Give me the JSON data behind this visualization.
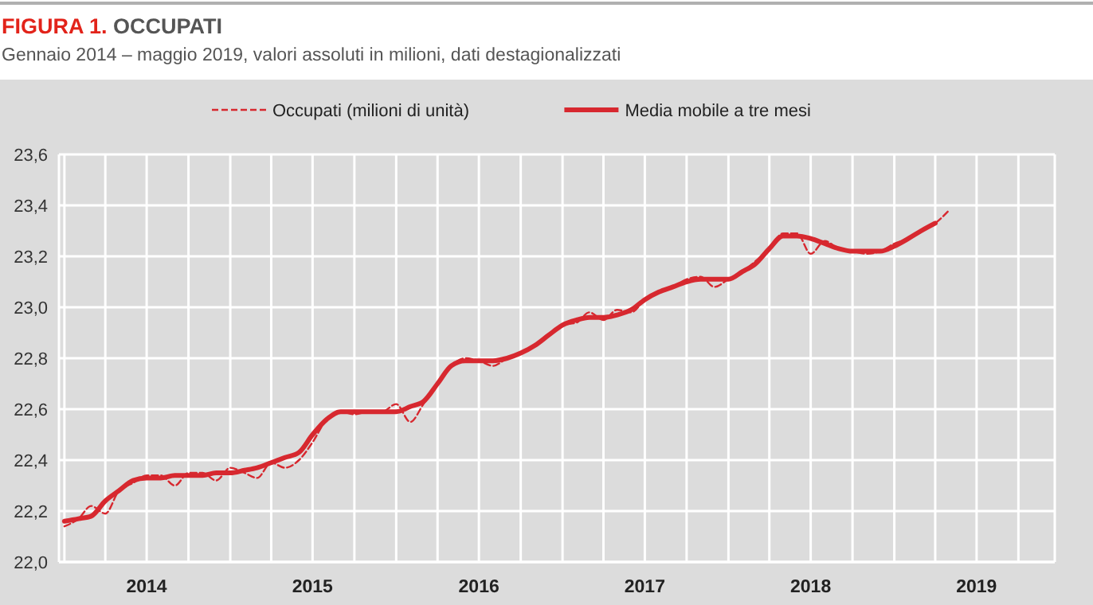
{
  "chart_data": {
    "type": "line",
    "title": "FIGURA 1. OCCUPATI",
    "subtitle": "Gennaio 2014 – maggio 2019, valori assoluti in milioni, dati destagionalizzati",
    "x": [
      "2014-01",
      "2014-02",
      "2014-03",
      "2014-04",
      "2014-05",
      "2014-06",
      "2014-07",
      "2014-08",
      "2014-09",
      "2014-10",
      "2014-11",
      "2014-12",
      "2015-01",
      "2015-02",
      "2015-03",
      "2015-04",
      "2015-05",
      "2015-06",
      "2015-07",
      "2015-08",
      "2015-09",
      "2015-10",
      "2015-11",
      "2015-12",
      "2016-01",
      "2016-02",
      "2016-03",
      "2016-04",
      "2016-05",
      "2016-06",
      "2016-07",
      "2016-08",
      "2016-09",
      "2016-10",
      "2016-11",
      "2016-12",
      "2017-01",
      "2017-02",
      "2017-03",
      "2017-04",
      "2017-05",
      "2017-06",
      "2017-07",
      "2017-08",
      "2017-09",
      "2017-10",
      "2017-11",
      "2017-12",
      "2018-01",
      "2018-02",
      "2018-03",
      "2018-04",
      "2018-05",
      "2018-06",
      "2018-07",
      "2018-08",
      "2018-09",
      "2018-10",
      "2018-11",
      "2018-12",
      "2019-01",
      "2019-02",
      "2019-03",
      "2019-04",
      "2019-05"
    ],
    "series": [
      {
        "name": "Occupati (milioni di unità)",
        "color": "#d7282f",
        "line_style": "dashed",
        "values": [
          22.14,
          22.17,
          22.22,
          22.19,
          22.28,
          22.31,
          22.34,
          22.34,
          22.3,
          22.35,
          22.35,
          22.32,
          22.37,
          22.35,
          22.33,
          22.39,
          22.37,
          22.4,
          22.47,
          22.56,
          22.59,
          22.58,
          22.59,
          22.59,
          22.62,
          22.55,
          22.62,
          22.7,
          22.77,
          22.8,
          22.79,
          22.77,
          22.8,
          22.82,
          22.85,
          22.89,
          22.93,
          22.94,
          22.98,
          22.95,
          22.99,
          22.98,
          23.03,
          23.06,
          23.08,
          23.11,
          23.12,
          23.08,
          23.11,
          23.14,
          23.18,
          23.23,
          23.29,
          23.29,
          23.21,
          23.26,
          23.23,
          23.22,
          23.21,
          23.22,
          23.25,
          23.27,
          23.3,
          23.33,
          23.38
        ]
      },
      {
        "name": "Media mobile a tre mesi",
        "color": "#d7282f",
        "line_style": "solid",
        "values": [
          22.16,
          22.17,
          22.18,
          22.24,
          22.28,
          22.32,
          22.33,
          22.33,
          22.34,
          22.34,
          22.34,
          22.35,
          22.35,
          22.36,
          22.37,
          22.39,
          22.41,
          22.43,
          22.5,
          22.56,
          22.59,
          22.59,
          22.59,
          22.59,
          22.59,
          22.61,
          22.63,
          22.7,
          22.77,
          22.79,
          22.79,
          22.79,
          22.8,
          22.82,
          22.85,
          22.89,
          22.93,
          22.95,
          22.96,
          22.96,
          22.97,
          22.99,
          23.03,
          23.06,
          23.08,
          23.1,
          23.11,
          23.11,
          23.11,
          23.14,
          23.17,
          23.23,
          23.28,
          23.28,
          23.27,
          23.25,
          23.23,
          23.22,
          23.22,
          23.22,
          23.24,
          23.27,
          23.3,
          23.33,
          null
        ]
      }
    ],
    "xlim": [
      "2013-12-20",
      "2019-12-20"
    ],
    "xticks": [
      {
        "value": "2014-01-01",
        "label": null
      },
      {
        "value": "2014-04-01",
        "label": null
      },
      {
        "value": "2014-07-01",
        "label": "2014"
      },
      {
        "value": "2014-10-01",
        "label": null
      },
      {
        "value": "2015-01-01",
        "label": null
      },
      {
        "value": "2015-04-01",
        "label": null
      },
      {
        "value": "2015-07-01",
        "label": "2015"
      },
      {
        "value": "2015-10-01",
        "label": null
      },
      {
        "value": "2016-01-01",
        "label": null
      },
      {
        "value": "2016-04-01",
        "label": null
      },
      {
        "value": "2016-07-01",
        "label": "2016"
      },
      {
        "value": "2016-10-01",
        "label": null
      },
      {
        "value": "2017-01-01",
        "label": null
      },
      {
        "value": "2017-04-01",
        "label": null
      },
      {
        "value": "2017-07-01",
        "label": "2017"
      },
      {
        "value": "2017-10-01",
        "label": null
      },
      {
        "value": "2018-01-01",
        "label": null
      },
      {
        "value": "2018-04-01",
        "label": null
      },
      {
        "value": "2018-07-01",
        "label": "2018"
      },
      {
        "value": "2018-10-01",
        "label": null
      },
      {
        "value": "2019-01-01",
        "label": null
      },
      {
        "value": "2019-04-01",
        "label": null
      },
      {
        "value": "2019-07-01",
        "label": "2019"
      },
      {
        "value": "2019-10-01",
        "label": null
      }
    ],
    "ylim": [
      22.0,
      23.6
    ],
    "yticks": [
      {
        "value": 22.0,
        "label": "22,0"
      },
      {
        "value": 22.2,
        "label": "22,2"
      },
      {
        "value": 22.4,
        "label": "22,4"
      },
      {
        "value": 22.6,
        "label": "22,6"
      },
      {
        "value": 22.8,
        "label": "22,8"
      },
      {
        "value": 23.0,
        "label": "23,0"
      },
      {
        "value": 23.2,
        "label": "23,2"
      },
      {
        "value": 23.4,
        "label": "23,4"
      },
      {
        "value": 23.6,
        "label": "23,6"
      }
    ],
    "grid": true,
    "legend": "top",
    "marker": "none"
  }
}
